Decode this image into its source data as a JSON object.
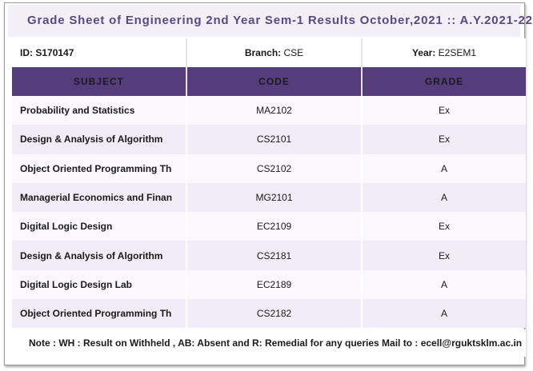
{
  "title": "Grade Sheet of Engineering 2nd Year Sem-1 Results October,2021 :: A.Y.2021-22",
  "student": {
    "id_label": "ID:",
    "id_value": "S170147",
    "branch_label": "Branch:",
    "branch_value": "CSE",
    "year_label": "Year:",
    "year_value": "E2SEM1"
  },
  "headers": {
    "subject": "SUBJECT",
    "code": "CODE",
    "grade": "GRADE"
  },
  "rows": [
    {
      "subject": "Probability and Statistics",
      "code": "MA2102",
      "grade": "Ex"
    },
    {
      "subject": "Design & Analysis of Algorithm",
      "code": "CS2101",
      "grade": "Ex"
    },
    {
      "subject": "Object Oriented Programming Th",
      "code": "CS2102",
      "grade": "A"
    },
    {
      "subject": "Managerial Economics and Finan",
      "code": "MG2101",
      "grade": "A"
    },
    {
      "subject": "Digital Logic Design",
      "code": "EC2109",
      "grade": "Ex"
    },
    {
      "subject": "Design & Analysis of Algorithm",
      "code": "CS2181",
      "grade": "Ex"
    },
    {
      "subject": "Digital Logic Design Lab",
      "code": "EC2189",
      "grade": "A"
    },
    {
      "subject": "Object Oriented Programming Th",
      "code": "CS2182",
      "grade": "A"
    }
  ],
  "note": "Note : WH : Result on Withheld , AB: Absent and R: Remedial for any queries Mail to : ecell@rgukt​sklm.ac.in",
  "colors": {
    "header_bg": "#553d7c",
    "title_text": "#5b4a7e",
    "row_alt": "#f1ecf8"
  }
}
